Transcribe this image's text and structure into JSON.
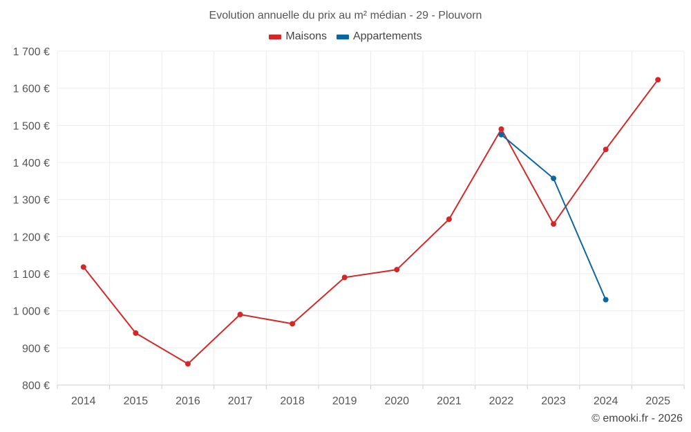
{
  "legend": {
    "items": [
      {
        "label": "Maisons",
        "color": "#d62728"
      },
      {
        "label": "Appartements",
        "color": "#0a67a3"
      }
    ]
  },
  "credit": "© emooki.fr - 2026",
  "chart_data": {
    "type": "line",
    "title": "Evolution annuelle du prix au m² médian - 29 - Plouvorn",
    "categories": [
      "2014",
      "2015",
      "2016",
      "2017",
      "2018",
      "2019",
      "2020",
      "2021",
      "2022",
      "2023",
      "2024",
      "2025"
    ],
    "ylim": [
      800,
      1700
    ],
    "yticks": [
      800,
      900,
      1000,
      1100,
      1200,
      1300,
      1400,
      1500,
      1600,
      1700
    ],
    "ytick_labels": [
      "800 €",
      "900 €",
      "1 000 €",
      "1 100 €",
      "1 200 €",
      "1 300 €",
      "1 400 €",
      "1 500 €",
      "1 600 €",
      "1 700 €"
    ],
    "grid": true,
    "series": [
      {
        "name": "Maisons",
        "color": "#d62728",
        "values": [
          1118,
          940,
          857,
          990,
          965,
          1090,
          1111,
          1247,
          1490,
          1234,
          1435,
          1623
        ]
      },
      {
        "name": "Appartements",
        "color": "#0a67a3",
        "values": [
          null,
          null,
          null,
          null,
          null,
          null,
          null,
          null,
          1475,
          1357,
          1030,
          null
        ]
      }
    ]
  }
}
